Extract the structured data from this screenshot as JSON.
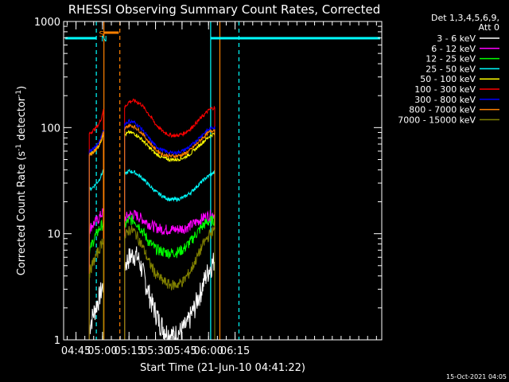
{
  "chart_data": {
    "type": "line",
    "title": "RHESSI Observing Summary Count Rates, Corrected",
    "xlabel": "Start Time (21-Jun-10 04:41:22)",
    "ylabel_main": "Corrected Count Rate (s",
    "ylabel_sup1": "-1",
    "ylabel_mid": " detector",
    "ylabel_sup2": "-1",
    "ylabel_end": ")",
    "yscale": "log",
    "ylim": [
      1,
      1000
    ],
    "xlim": [
      38,
      218
    ],
    "x_unit": "minutes after 04:00 UT",
    "yticks": [
      {
        "value": 1,
        "label": "1"
      },
      {
        "value": 10,
        "label": "10"
      },
      {
        "value": 100,
        "label": "100"
      },
      {
        "value": 1000,
        "label": "1000"
      }
    ],
    "xticks": [
      {
        "value": 45,
        "label": "04:45"
      },
      {
        "value": 60,
        "label": "05:00"
      },
      {
        "value": 75,
        "label": "05:15"
      },
      {
        "value": 90,
        "label": "05:30"
      },
      {
        "value": 105,
        "label": "05:45"
      },
      {
        "value": 120,
        "label": "06:00"
      },
      {
        "value": 135,
        "label": "06:15"
      }
    ],
    "legend_header": [
      "Det 1,3,4,5,6,9,",
      "Att 0"
    ],
    "legend_placement": "right",
    "series": [
      {
        "name": "3 - 6 keV",
        "color": "#ffffff",
        "segments": [
          {
            "x": [
              52.5,
              54,
              56,
              58,
              59.5,
              60.5
            ],
            "y": [
              1.3,
              1.6,
              2.0,
              2.5,
              3.0,
              3.3
            ]
          },
          {
            "x": [
              72.5,
              75,
              78,
              80,
              82,
              85,
              88,
              92,
              96,
              100,
              104,
              108,
              112,
              116,
              119,
              122,
              123.5
            ],
            "y": [
              5.0,
              6.0,
              6.5,
              6.0,
              4.8,
              3.2,
              2.2,
              1.5,
              1.2,
              1.1,
              1.2,
              1.4,
              2.0,
              3.0,
              4.2,
              5.2,
              5.8
            ]
          }
        ]
      },
      {
        "name": "6 - 12 keV",
        "color": "#ff00ff",
        "segments": [
          {
            "x": [
              52.5,
              54,
              56,
              58,
              59.5,
              60.5
            ],
            "y": [
              11,
              12,
              13,
              14,
              15.5,
              16
            ]
          },
          {
            "x": [
              72.5,
              75,
              78,
              82,
              86,
              90,
              94,
              98,
              102,
              106,
              110,
              114,
              118,
              121,
              123.5
            ],
            "y": [
              14,
              15,
              15.2,
              14,
              12.5,
              11.5,
              11,
              11,
              11,
              11.3,
              12,
              13.2,
              14.5,
              15,
              15.3
            ]
          }
        ]
      },
      {
        "name": "12 - 25 keV",
        "color": "#00ff00",
        "segments": [
          {
            "x": [
              52.5,
              54,
              56,
              58,
              59.5,
              60.5
            ],
            "y": [
              6.5,
              8.0,
              9.5,
              11,
              12,
              12.5
            ]
          },
          {
            "x": [
              72.5,
              75,
              78,
              82,
              86,
              90,
              94,
              98,
              102,
              106,
              110,
              114,
              118,
              121,
              123.5
            ],
            "y": [
              12,
              13.5,
              13.5,
              11,
              8.5,
              7.2,
              6.8,
              6.6,
              6.7,
              7.2,
              8.5,
              10.5,
              12.5,
              13.2,
              13.5
            ]
          }
        ]
      },
      {
        "name": "25 - 50 keV",
        "color": "#00ffff",
        "segments": [
          {
            "x": [
              52.5,
              54,
              56,
              58,
              59.5,
              60.5
            ],
            "y": [
              26,
              27,
              29,
              32,
              36,
              40
            ]
          },
          {
            "x": [
              72.5,
              75,
              78,
              82,
              86,
              90,
              94,
              98,
              102,
              106,
              110,
              114,
              118,
              121,
              123.5
            ],
            "y": [
              36,
              39,
              38,
              34,
              29,
              25,
              22.5,
              21,
              21,
              22,
              24.5,
              28.5,
              33,
              36,
              38
            ]
          }
        ]
      },
      {
        "name": "50 - 100 keV",
        "color": "#ffff00",
        "segments": [
          {
            "x": [
              52.5,
              54,
              56,
              58,
              59.5,
              60.5
            ],
            "y": [
              55,
              58,
              62,
              68,
              78,
              90
            ]
          },
          {
            "x": [
              72.5,
              75,
              78,
              82,
              86,
              90,
              94,
              98,
              102,
              106,
              110,
              114,
              118,
              121,
              123.5
            ],
            "y": [
              85,
              90,
              88,
              78,
              66,
              57,
              52,
              50,
              50,
              52,
              57,
              66,
              76,
              84,
              88
            ]
          }
        ]
      },
      {
        "name": "100 - 300 keV",
        "color": "#ff0000",
        "segments": [
          {
            "x": [
              52.5,
              54,
              56,
              58,
              59.5,
              60.5
            ],
            "y": [
              88,
              92,
              98,
              108,
              125,
              150
            ]
          },
          {
            "x": [
              72.5,
              75,
              78,
              82,
              86,
              90,
              94,
              98,
              102,
              106,
              110,
              114,
              118,
              121,
              123.5
            ],
            "y": [
              155,
              175,
              180,
              165,
              135,
              108,
              92,
              85,
              84,
              88,
              98,
              115,
              135,
              150,
              155
            ]
          }
        ]
      },
      {
        "name": "300 - 800 keV",
        "color": "#0000ff",
        "segments": [
          {
            "x": [
              52.5,
              54,
              56,
              58,
              59.5,
              60.5
            ],
            "y": [
              60,
              62,
              66,
              72,
              82,
              95
            ]
          },
          {
            "x": [
              72.5,
              75,
              78,
              82,
              86,
              90,
              94,
              98,
              102,
              106,
              110,
              114,
              118,
              121,
              123.5
            ],
            "y": [
              108,
              115,
              112,
              98,
              80,
              67,
              61,
              58,
              58,
              61,
              67,
              78,
              90,
              98,
              102
            ]
          }
        ]
      },
      {
        "name": "800 - 7000 keV",
        "color": "#ff8000",
        "segments": [
          {
            "x": [
              52.5,
              54,
              56,
              58,
              59.5,
              60.5
            ],
            "y": [
              56,
              58,
              62,
              68,
              78,
              90
            ]
          },
          {
            "x": [
              72.5,
              75,
              78,
              82,
              86,
              90,
              94,
              98,
              102,
              106,
              110,
              114,
              118,
              121,
              123.5
            ],
            "y": [
              98,
              105,
              102,
              90,
              74,
              62,
              56,
              54,
              54,
              56,
              62,
              72,
              84,
              92,
              96
            ]
          }
        ]
      },
      {
        "name": "7000 - 15000 keV",
        "color": "#808000",
        "segments": [
          {
            "x": [
              52.5,
              54,
              56,
              58,
              59.5,
              60.5
            ],
            "y": [
              4.2,
              5.0,
              6.0,
              7.0,
              8.2,
              9.0
            ]
          },
          {
            "x": [
              72.5,
              75,
              78,
              82,
              86,
              90,
              94,
              98,
              102,
              106,
              110,
              114,
              118,
              121,
              123.5
            ],
            "y": [
              9.0,
              11,
              10.5,
              8.0,
              5.5,
              4.2,
              3.6,
              3.3,
              3.3,
              3.6,
              4.5,
              6.2,
              8.5,
              10,
              11
            ]
          }
        ]
      }
    ],
    "markers": {
      "saa_label": "S",
      "night_label": "N",
      "saa_color": "#ff8000",
      "night_color": "#00ffff"
    },
    "footer_date": "15-Oct-2021 04:05"
  }
}
